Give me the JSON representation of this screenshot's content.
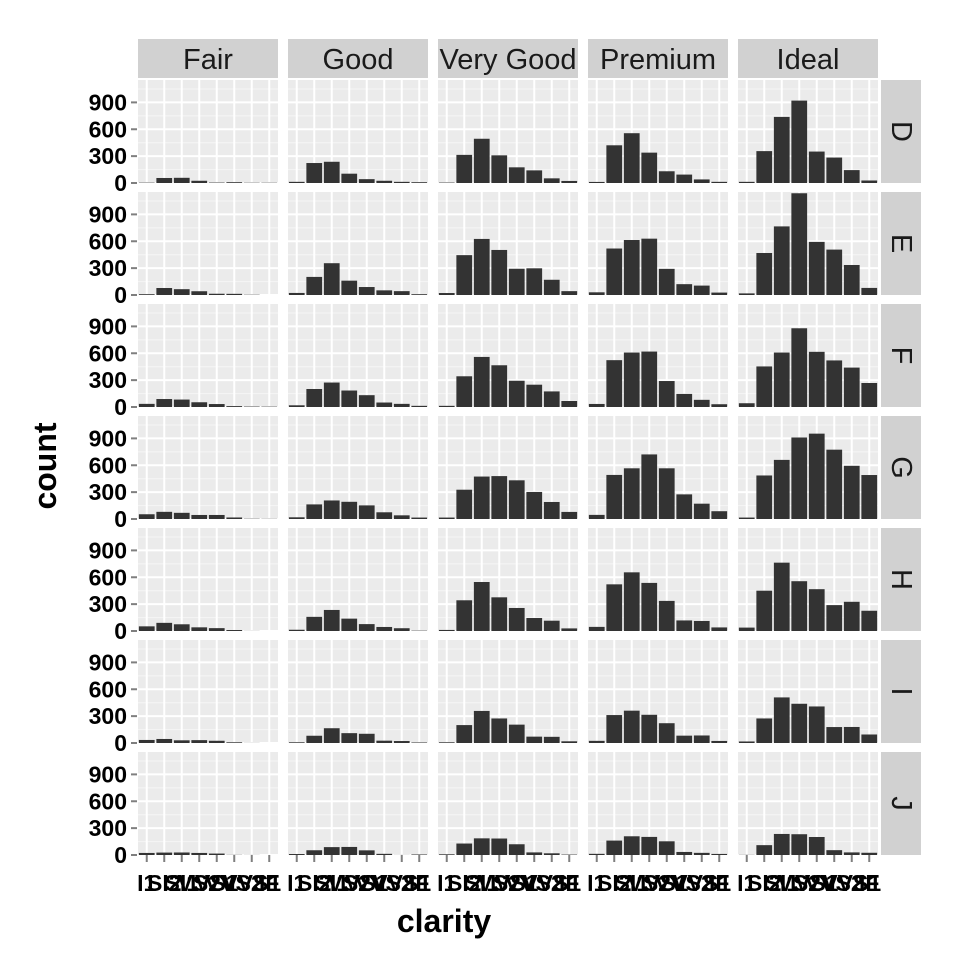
{
  "chart_data": {
    "type": "bar",
    "layout": "facet-grid",
    "xlabel": "clarity",
    "ylabel": "count",
    "ylim": [
      0,
      1150
    ],
    "yticks": [
      0,
      300,
      600,
      900
    ],
    "grid": true,
    "colors": {
      "panel_bg": "#ebebeb",
      "grid": "#ffffff",
      "strip_bg": "#d1d1d1",
      "bar": "#333333",
      "tick": "#7f7f7f"
    },
    "categories": [
      "I1",
      "SI2",
      "SI1",
      "VS2",
      "VS1",
      "VVS2",
      "VVS1",
      "IF"
    ],
    "col_facets": [
      "Fair",
      "Good",
      "Very Good",
      "Premium",
      "Ideal"
    ],
    "row_facets": [
      "D",
      "E",
      "F",
      "G",
      "H",
      "I",
      "J"
    ],
    "values": [
      [
        [
          4,
          56,
          58,
          25,
          5,
          9,
          3,
          3
        ],
        [
          13,
          223,
          237,
          104,
          43,
          25,
          13,
          9
        ],
        [
          5,
          314,
          494,
          309,
          175,
          141,
          52,
          23
        ],
        [
          12,
          421,
          556,
          339,
          131,
          94,
          40,
          13
        ],
        [
          13,
          356,
          738,
          920,
          351,
          284,
          144,
          28
        ]
      ],
      [
        [
          9,
          78,
          65,
          42,
          14,
          13,
          3,
          0
        ],
        [
          23,
          202,
          355,
          160,
          89,
          52,
          43,
          9
        ],
        [
          22,
          445,
          626,
          503,
          293,
          298,
          170,
          43
        ],
        [
          30,
          519,
          614,
          629,
          292,
          121,
          105,
          27
        ],
        [
          18,
          469,
          766,
          1136,
          593,
          507,
          335,
          79
        ]
      ],
      [
        [
          35,
          89,
          83,
          53,
          33,
          10,
          5,
          4
        ],
        [
          19,
          201,
          273,
          184,
          132,
          50,
          35,
          13
        ],
        [
          13,
          343,
          559,
          466,
          293,
          249,
          174,
          67
        ],
        [
          34,
          523,
          608,
          619,
          290,
          146,
          80,
          31
        ],
        [
          42,
          453,
          608,
          879,
          616,
          520,
          440,
          268
        ]
      ],
      [
        [
          53,
          80,
          69,
          45,
          45,
          17,
          3,
          2
        ],
        [
          19,
          163,
          207,
          192,
          152,
          75,
          41,
          16
        ],
        [
          16,
          327,
          474,
          479,
          432,
          302,
          190,
          79
        ],
        [
          46,
          492,
          566,
          721,
          566,
          275,
          171,
          87
        ],
        [
          16,
          486,
          660,
          910,
          953,
          774,
          594,
          491
        ]
      ],
      [
        [
          52,
          91,
          75,
          41,
          32,
          11,
          1,
          0
        ],
        [
          14,
          158,
          235,
          138,
          77,
          45,
          31,
          4
        ],
        [
          12,
          343,
          547,
          376,
          257,
          145,
          115,
          29
        ],
        [
          46,
          521,
          655,
          537,
          336,
          118,
          112,
          40
        ],
        [
          38,
          450,
          763,
          556,
          467,
          289,
          326,
          226
        ]
      ],
      [
        [
          34,
          45,
          30,
          32,
          25,
          8,
          1,
          0
        ],
        [
          8,
          81,
          165,
          110,
          103,
          26,
          22,
          6
        ],
        [
          8,
          200,
          358,
          274,
          205,
          71,
          69,
          19
        ],
        [
          24,
          312,
          361,
          315,
          221,
          82,
          84,
          23
        ],
        [
          17,
          274,
          509,
          438,
          408,
          178,
          179,
          95
        ]
      ],
      [
        [
          23,
          27,
          28,
          23,
          16,
          2,
          1,
          0
        ],
        [
          11,
          53,
          88,
          90,
          52,
          13,
          1,
          6
        ],
        [
          8,
          128,
          186,
          184,
          120,
          29,
          19,
          5
        ],
        [
          13,
          161,
          209,
          202,
          153,
          34,
          24,
          12
        ],
        [
          2,
          110,
          235,
          232,
          201,
          54,
          29,
          25
        ]
      ]
    ]
  }
}
